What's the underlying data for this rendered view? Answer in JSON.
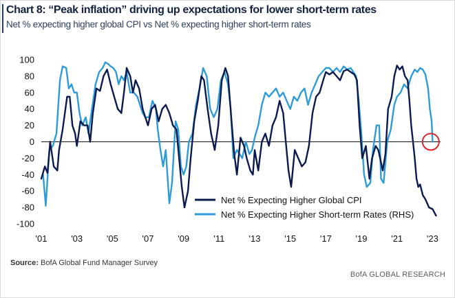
{
  "title": "Chart 8: “Peak inflation” driving up expectations for lower short-term rates",
  "subtitle": "Net % expecting higher global CPI vs Net % expecting higher short-term rates",
  "source_label": "Source:",
  "source_text": "BofA Global Fund Manager Survey",
  "brand": "BofA GLOBAL RESEARCH",
  "colors": {
    "cpi": "#0b1a4e",
    "rates": "#2d9bd7",
    "highlight": "#d9262e",
    "zero_line": "#111111"
  },
  "chart_data": {
    "type": "line",
    "title": "Chart 8: “Peak inflation” driving up expectations for lower short-term rates",
    "xlabel": "",
    "ylabel": "",
    "xlim": [
      2001.0,
      2023.45
    ],
    "ylim": [
      -100,
      100
    ],
    "y_ticks": [
      100,
      80,
      60,
      40,
      20,
      0,
      -20,
      -40,
      -60,
      -80,
      -100
    ],
    "x_ticks": [
      {
        "year": 2001,
        "label": "'01"
      },
      {
        "year": 2003,
        "label": "'03"
      },
      {
        "year": 2005,
        "label": "'05"
      },
      {
        "year": 2007,
        "label": "'07"
      },
      {
        "year": 2009,
        "label": "'09"
      },
      {
        "year": 2011,
        "label": "'11"
      },
      {
        "year": 2013,
        "label": "'13"
      },
      {
        "year": 2015,
        "label": "'15"
      },
      {
        "year": 2017,
        "label": "'17"
      },
      {
        "year": 2019,
        "label": "'19"
      },
      {
        "year": 2021,
        "label": "'21"
      },
      {
        "year": 2023,
        "label": "'23"
      }
    ],
    "legend_position": "bottom-right",
    "highlight": {
      "x": 2022.9,
      "y": 0,
      "shape": "circle",
      "note": "latest rates reading near zero"
    },
    "series": [
      {
        "name": "Net % Expecting Higher Global CPI",
        "color": "#0b1a4e",
        "points": [
          [
            2001.0,
            -45
          ],
          [
            2001.2,
            -30
          ],
          [
            2001.35,
            -38
          ],
          [
            2001.5,
            0
          ],
          [
            2001.7,
            -30
          ],
          [
            2001.9,
            -35
          ],
          [
            2002.0,
            -10
          ],
          [
            2002.2,
            15
          ],
          [
            2002.45,
            55
          ],
          [
            2002.6,
            55
          ],
          [
            2002.75,
            20
          ],
          [
            2002.9,
            10
          ],
          [
            2003.0,
            -5
          ],
          [
            2003.2,
            25
          ],
          [
            2003.4,
            20
          ],
          [
            2003.6,
            20
          ],
          [
            2003.75,
            0
          ],
          [
            2003.9,
            35
          ],
          [
            2004.1,
            65
          ],
          [
            2004.3,
            62
          ],
          [
            2004.5,
            80
          ],
          [
            2004.7,
            88
          ],
          [
            2004.9,
            70
          ],
          [
            2005.1,
            55
          ],
          [
            2005.3,
            40
          ],
          [
            2005.5,
            35
          ],
          [
            2005.65,
            60
          ],
          [
            2005.8,
            90
          ],
          [
            2006.0,
            80
          ],
          [
            2006.15,
            60
          ],
          [
            2006.3,
            75
          ],
          [
            2006.5,
            65
          ],
          [
            2006.7,
            40
          ],
          [
            2006.85,
            30
          ],
          [
            2007.0,
            20
          ],
          [
            2007.2,
            40
          ],
          [
            2007.4,
            45
          ],
          [
            2007.6,
            25
          ],
          [
            2007.8,
            40
          ],
          [
            2008.0,
            45
          ],
          [
            2008.2,
            35
          ],
          [
            2008.4,
            20
          ],
          [
            2008.6,
            15
          ],
          [
            2008.75,
            -20
          ],
          [
            2008.9,
            -55
          ],
          [
            2009.05,
            -80
          ],
          [
            2009.25,
            -60
          ],
          [
            2009.4,
            -20
          ],
          [
            2009.6,
            25
          ],
          [
            2009.8,
            50
          ],
          [
            2010.0,
            80
          ],
          [
            2010.15,
            75
          ],
          [
            2010.35,
            40
          ],
          [
            2010.55,
            10
          ],
          [
            2010.75,
            -10
          ],
          [
            2010.95,
            20
          ],
          [
            2011.15,
            75
          ],
          [
            2011.35,
            90
          ],
          [
            2011.5,
            80
          ],
          [
            2011.7,
            25
          ],
          [
            2011.85,
            -15
          ],
          [
            2012.0,
            -40
          ],
          [
            2012.2,
            5
          ],
          [
            2012.4,
            -5
          ],
          [
            2012.55,
            -20
          ],
          [
            2012.75,
            -35
          ],
          [
            2012.9,
            -40
          ],
          [
            2013.0,
            -10
          ],
          [
            2013.2,
            -35
          ],
          [
            2013.4,
            0
          ],
          [
            2013.6,
            10
          ],
          [
            2013.8,
            -5
          ],
          [
            2014.0,
            20
          ],
          [
            2014.2,
            30
          ],
          [
            2014.4,
            50
          ],
          [
            2014.6,
            35
          ],
          [
            2014.75,
            0
          ],
          [
            2014.9,
            -35
          ],
          [
            2015.05,
            -55
          ],
          [
            2015.25,
            -10
          ],
          [
            2015.45,
            -20
          ],
          [
            2015.65,
            -30
          ],
          [
            2015.85,
            -25
          ],
          [
            2016.05,
            -5
          ],
          [
            2016.25,
            35
          ],
          [
            2016.45,
            55
          ],
          [
            2016.65,
            60
          ],
          [
            2016.85,
            75
          ],
          [
            2017.0,
            85
          ],
          [
            2017.2,
            82
          ],
          [
            2017.4,
            85
          ],
          [
            2017.6,
            80
          ],
          [
            2017.8,
            75
          ],
          [
            2018.0,
            86
          ],
          [
            2018.2,
            88
          ],
          [
            2018.4,
            85
          ],
          [
            2018.6,
            82
          ],
          [
            2018.75,
            75
          ],
          [
            2018.9,
            20
          ],
          [
            2019.05,
            -20
          ],
          [
            2019.25,
            -5
          ],
          [
            2019.45,
            -45
          ],
          [
            2019.6,
            -20
          ],
          [
            2019.8,
            -5
          ],
          [
            2019.95,
            -10
          ],
          [
            2020.1,
            -25
          ],
          [
            2020.2,
            -35
          ],
          [
            2020.35,
            -15
          ],
          [
            2020.5,
            40
          ],
          [
            2020.7,
            55
          ],
          [
            2020.85,
            80
          ],
          [
            2021.0,
            93
          ],
          [
            2021.15,
            88
          ],
          [
            2021.3,
            92
          ],
          [
            2021.45,
            80
          ],
          [
            2021.6,
            75
          ],
          [
            2021.7,
            50
          ],
          [
            2021.8,
            20
          ],
          [
            2021.9,
            0
          ],
          [
            2022.0,
            -20
          ],
          [
            2022.1,
            -45
          ],
          [
            2022.2,
            -55
          ],
          [
            2022.3,
            -52
          ],
          [
            2022.45,
            -65
          ],
          [
            2022.6,
            -70
          ],
          [
            2022.8,
            -80
          ],
          [
            2023.0,
            -82
          ],
          [
            2023.2,
            -90
          ]
        ]
      },
      {
        "name": "Net % Expecting Higher Short-term Rates (RHS)",
        "color": "#2d9bd7",
        "points": [
          [
            2001.1,
            -40
          ],
          [
            2001.25,
            -78
          ],
          [
            2001.45,
            -10
          ],
          [
            2001.65,
            -5
          ],
          [
            2001.85,
            10
          ],
          [
            2002.05,
            75
          ],
          [
            2002.2,
            92
          ],
          [
            2002.4,
            90
          ],
          [
            2002.55,
            65
          ],
          [
            2002.7,
            70
          ],
          [
            2002.85,
            60
          ],
          [
            2003.0,
            60
          ],
          [
            2003.15,
            35
          ],
          [
            2003.3,
            20
          ],
          [
            2003.5,
            30
          ],
          [
            2003.65,
            10
          ],
          [
            2003.85,
            40
          ],
          [
            2004.05,
            70
          ],
          [
            2004.25,
            85
          ],
          [
            2004.45,
            90
          ],
          [
            2004.6,
            97
          ],
          [
            2004.75,
            95
          ],
          [
            2004.9,
            92
          ],
          [
            2005.05,
            90
          ],
          [
            2005.2,
            85
          ],
          [
            2005.35,
            70
          ],
          [
            2005.5,
            80
          ],
          [
            2005.65,
            75
          ],
          [
            2005.8,
            85
          ],
          [
            2006.0,
            60
          ],
          [
            2006.2,
            60
          ],
          [
            2006.4,
            55
          ],
          [
            2006.55,
            45
          ],
          [
            2006.7,
            35
          ],
          [
            2006.85,
            30
          ],
          [
            2007.05,
            30
          ],
          [
            2007.25,
            50
          ],
          [
            2007.45,
            40
          ],
          [
            2007.55,
            15
          ],
          [
            2007.7,
            -10
          ],
          [
            2007.85,
            -30
          ],
          [
            2008.0,
            -10
          ],
          [
            2008.2,
            -75
          ],
          [
            2008.35,
            -50
          ],
          [
            2008.55,
            25
          ],
          [
            2008.7,
            15
          ],
          [
            2008.85,
            -30
          ],
          [
            2009.0,
            -40
          ],
          [
            2009.15,
            -30
          ],
          [
            2009.3,
            0
          ],
          [
            2009.5,
            10
          ],
          [
            2009.7,
            45
          ],
          [
            2009.9,
            65
          ],
          [
            2010.1,
            90
          ],
          [
            2010.3,
            80
          ],
          [
            2010.5,
            40
          ],
          [
            2010.7,
            30
          ],
          [
            2010.9,
            40
          ],
          [
            2011.1,
            75
          ],
          [
            2011.3,
            85
          ],
          [
            2011.5,
            70
          ],
          [
            2011.65,
            40
          ],
          [
            2011.8,
            -20
          ],
          [
            2012.0,
            -10
          ],
          [
            2012.15,
            -15
          ],
          [
            2012.3,
            -20
          ],
          [
            2012.5,
            0
          ],
          [
            2012.7,
            -15
          ],
          [
            2012.85,
            -10
          ],
          [
            2013.0,
            5
          ],
          [
            2013.2,
            20
          ],
          [
            2013.4,
            45
          ],
          [
            2013.6,
            60
          ],
          [
            2013.8,
            55
          ],
          [
            2014.0,
            60
          ],
          [
            2014.2,
            65
          ],
          [
            2014.4,
            55
          ],
          [
            2014.6,
            60
          ],
          [
            2014.8,
            50
          ],
          [
            2015.0,
            40
          ],
          [
            2015.2,
            55
          ],
          [
            2015.4,
            50
          ],
          [
            2015.6,
            60
          ],
          [
            2015.8,
            65
          ],
          [
            2016.0,
            45
          ],
          [
            2016.2,
            60
          ],
          [
            2016.4,
            70
          ],
          [
            2016.6,
            80
          ],
          [
            2016.8,
            85
          ],
          [
            2017.0,
            90
          ],
          [
            2017.2,
            90
          ],
          [
            2017.4,
            85
          ],
          [
            2017.6,
            90
          ],
          [
            2017.8,
            85
          ],
          [
            2018.0,
            92
          ],
          [
            2018.2,
            88
          ],
          [
            2018.4,
            90
          ],
          [
            2018.55,
            85
          ],
          [
            2018.7,
            80
          ],
          [
            2018.85,
            50
          ],
          [
            2019.0,
            10
          ],
          [
            2019.15,
            -40
          ],
          [
            2019.3,
            -55
          ],
          [
            2019.5,
            -50
          ],
          [
            2019.65,
            -10
          ],
          [
            2019.85,
            20
          ],
          [
            2020.0,
            20
          ],
          [
            2020.1,
            -45
          ],
          [
            2020.25,
            -50
          ],
          [
            2020.45,
            0
          ],
          [
            2020.65,
            15
          ],
          [
            2020.85,
            45
          ],
          [
            2021.0,
            55
          ],
          [
            2021.2,
            60
          ],
          [
            2021.4,
            70
          ],
          [
            2021.6,
            65
          ],
          [
            2021.8,
            80
          ],
          [
            2022.0,
            88
          ],
          [
            2022.15,
            85
          ],
          [
            2022.3,
            90
          ],
          [
            2022.45,
            88
          ],
          [
            2022.6,
            82
          ],
          [
            2022.75,
            65
          ],
          [
            2022.85,
            40
          ],
          [
            2022.95,
            25
          ],
          [
            2023.0,
            0
          ]
        ]
      }
    ]
  }
}
